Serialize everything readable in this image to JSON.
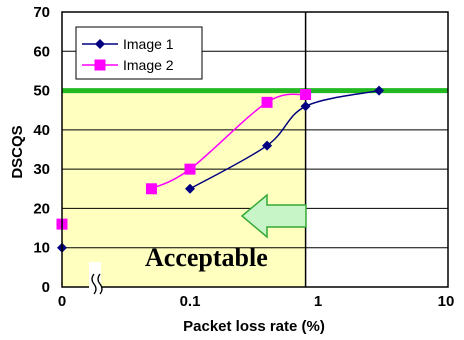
{
  "chart_data": {
    "type": "line",
    "title": "",
    "xlabel": "Packet loss rate (%)",
    "ylabel": "DSCQS",
    "x_scale": "log with break at 0",
    "x_ticks": [
      "0",
      "0.1",
      "1",
      "10"
    ],
    "y_ticks": [
      "0",
      "10",
      "20",
      "30",
      "40",
      "50",
      "60",
      "70"
    ],
    "ylim": [
      0,
      70
    ],
    "grid": "horizontal",
    "legend_position": "top-left",
    "series": [
      {
        "name": "Image 1",
        "color": "#000080",
        "marker": "diamond",
        "points": [
          {
            "x": 0,
            "y": 10
          },
          {
            "x": 0.1,
            "y": 25
          },
          {
            "x": 0.4,
            "y": 36
          },
          {
            "x": 0.8,
            "y": 46
          },
          {
            "x": 3,
            "y": 50
          }
        ]
      },
      {
        "name": "Image 2",
        "color": "#ff00ff",
        "marker": "square",
        "points": [
          {
            "x": 0,
            "y": 16
          },
          {
            "x": 0.05,
            "y": 25
          },
          {
            "x": 0.1,
            "y": 30
          },
          {
            "x": 0.4,
            "y": 47
          },
          {
            "x": 0.8,
            "y": 49
          }
        ]
      }
    ],
    "threshold": {
      "y": 50,
      "color": "#22b922"
    },
    "vertical_line": {
      "x": 0.8,
      "color": "#000000"
    },
    "acceptable_region": {
      "x": [
        0,
        0.8
      ],
      "y": [
        0,
        50
      ],
      "color": "#ffffc0"
    },
    "annotation": {
      "text": "Acceptable",
      "arrow_color": "#c8f5c8",
      "arrow_border": "#33aa33"
    }
  }
}
